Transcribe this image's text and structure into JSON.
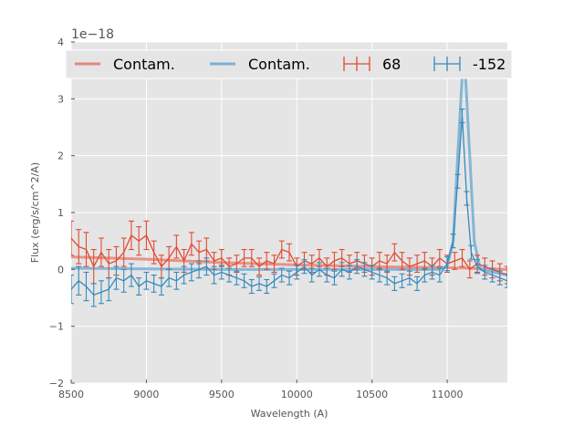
{
  "chart_data": {
    "type": "line",
    "title": "",
    "xlabel": "Wavelength (A)",
    "ylabel": "Flux (erg/s/cm^2/A)",
    "y_scale_label": "1e−18",
    "xlim": [
      8500,
      11400
    ],
    "ylim": [
      -2,
      4
    ],
    "x_ticks": [
      8500,
      9000,
      9500,
      10000,
      10500,
      11000
    ],
    "x_tick_labels": [
      "8500",
      "9000",
      "9500",
      "10000",
      "10500",
      "11000"
    ],
    "y_ticks": [
      -2,
      -1,
      0,
      1,
      2,
      3,
      4
    ],
    "y_tick_labels": [
      "−2",
      "−1",
      "0",
      "1",
      "2",
      "3",
      "4"
    ],
    "grid": true,
    "legend_position": "top",
    "colors": {
      "red": "#e24a33",
      "blue": "#348abd",
      "red_contam": "#e8887a",
      "blue_contam": "#7ab0d3",
      "plot_bg": "#e5e5e5",
      "grid": "#ffffff"
    },
    "series": [
      {
        "name": "Contam.",
        "kind": "contam-line",
        "color": "#e8887a",
        "x": [
          8500,
          9000,
          9500,
          10000,
          10500,
          11000,
          11400
        ],
        "y": [
          0.22,
          0.18,
          0.12,
          0.08,
          0.05,
          0.03,
          0.0
        ]
      },
      {
        "name": "Contam.",
        "kind": "contam-line",
        "color": "#7ab0d3",
        "x": [
          8500,
          9000,
          9500,
          10000,
          10500,
          10950,
          11000,
          11040,
          11070,
          11100,
          11120,
          11150,
          11180,
          11220,
          11400
        ],
        "y": [
          0.02,
          0.01,
          0.0,
          0.0,
          0.0,
          0.0,
          0.05,
          0.5,
          2.0,
          3.4,
          3.5,
          2.0,
          0.5,
          0.0,
          -0.1
        ]
      },
      {
        "name": "68",
        "kind": "errorbar",
        "color": "#e24a33",
        "x": [
          8500,
          8550,
          8600,
          8650,
          8700,
          8750,
          8800,
          8850,
          8900,
          8950,
          9000,
          9050,
          9100,
          9150,
          9200,
          9250,
          9300,
          9350,
          9400,
          9450,
          9500,
          9550,
          9600,
          9650,
          9700,
          9750,
          9800,
          9850,
          9900,
          9950,
          10000,
          10050,
          10100,
          10150,
          10200,
          10250,
          10300,
          10350,
          10400,
          10450,
          10500,
          10550,
          10600,
          10650,
          10700,
          10750,
          10800,
          10850,
          10900,
          10950,
          11000,
          11050,
          11100,
          11150,
          11200,
          11250,
          11300,
          11350,
          11400
        ],
        "y": [
          0.55,
          0.4,
          0.35,
          0.05,
          0.3,
          0.1,
          0.15,
          0.3,
          0.6,
          0.5,
          0.6,
          0.3,
          0.05,
          0.2,
          0.4,
          0.15,
          0.45,
          0.3,
          0.35,
          0.15,
          0.2,
          0.05,
          0.1,
          0.2,
          0.2,
          0.05,
          0.15,
          0.1,
          0.35,
          0.3,
          0.05,
          0.15,
          0.1,
          0.2,
          0.05,
          0.15,
          0.2,
          0.1,
          0.15,
          0.1,
          0.05,
          0.15,
          0.1,
          0.3,
          0.15,
          0.05,
          0.1,
          0.15,
          0.05,
          0.2,
          0.1,
          0.15,
          0.2,
          0.0,
          0.1,
          0.05,
          0.0,
          -0.05,
          -0.1
        ],
        "yerr": [
          0.3,
          0.3,
          0.3,
          0.3,
          0.25,
          0.25,
          0.25,
          0.25,
          0.25,
          0.25,
          0.25,
          0.2,
          0.2,
          0.2,
          0.2,
          0.2,
          0.2,
          0.2,
          0.2,
          0.15,
          0.15,
          0.15,
          0.15,
          0.15,
          0.15,
          0.15,
          0.15,
          0.15,
          0.15,
          0.15,
          0.15,
          0.15,
          0.15,
          0.15,
          0.15,
          0.15,
          0.15,
          0.15,
          0.15,
          0.15,
          0.15,
          0.15,
          0.15,
          0.15,
          0.15,
          0.15,
          0.15,
          0.15,
          0.15,
          0.15,
          0.15,
          0.15,
          0.15,
          0.15,
          0.15,
          0.15,
          0.15,
          0.15,
          0.15
        ]
      },
      {
        "name": "-152",
        "kind": "errorbar",
        "color": "#348abd",
        "x": [
          8500,
          8550,
          8600,
          8650,
          8700,
          8750,
          8800,
          8850,
          8900,
          8950,
          9000,
          9050,
          9100,
          9150,
          9200,
          9250,
          9300,
          9350,
          9400,
          9450,
          9500,
          9550,
          9600,
          9650,
          9700,
          9750,
          9800,
          9850,
          9900,
          9950,
          10000,
          10050,
          10100,
          10150,
          10200,
          10250,
          10300,
          10350,
          10400,
          10450,
          10500,
          10550,
          10600,
          10650,
          10700,
          10750,
          10800,
          10850,
          10900,
          10950,
          11000,
          11040,
          11070,
          11100,
          11130,
          11160,
          11200,
          11250,
          11300,
          11350,
          11400
        ],
        "y": [
          -0.35,
          -0.2,
          -0.3,
          -0.45,
          -0.4,
          -0.35,
          -0.15,
          -0.2,
          -0.1,
          -0.3,
          -0.2,
          -0.25,
          -0.3,
          -0.15,
          -0.2,
          -0.1,
          -0.05,
          0.0,
          0.05,
          -0.1,
          -0.05,
          -0.1,
          -0.15,
          -0.2,
          -0.3,
          -0.25,
          -0.3,
          -0.2,
          -0.1,
          -0.15,
          -0.05,
          0.05,
          -0.1,
          0.0,
          -0.1,
          -0.15,
          0.0,
          -0.05,
          0.05,
          0.0,
          -0.05,
          -0.1,
          -0.15,
          -0.25,
          -0.2,
          -0.15,
          -0.25,
          -0.1,
          -0.05,
          -0.1,
          0.1,
          0.5,
          1.55,
          2.7,
          1.25,
          0.3,
          0.05,
          -0.05,
          -0.1,
          -0.15,
          -0.2
        ],
        "yerr": [
          0.25,
          0.25,
          0.25,
          0.2,
          0.2,
          0.2,
          0.2,
          0.2,
          0.2,
          0.15,
          0.15,
          0.15,
          0.15,
          0.15,
          0.15,
          0.15,
          0.15,
          0.15,
          0.15,
          0.15,
          0.12,
          0.12,
          0.12,
          0.12,
          0.12,
          0.12,
          0.12,
          0.12,
          0.12,
          0.12,
          0.12,
          0.12,
          0.12,
          0.12,
          0.12,
          0.12,
          0.12,
          0.12,
          0.12,
          0.12,
          0.12,
          0.12,
          0.12,
          0.12,
          0.12,
          0.12,
          0.12,
          0.12,
          0.12,
          0.12,
          0.12,
          0.12,
          0.12,
          0.12,
          0.12,
          0.12,
          0.12,
          0.12,
          0.12,
          0.12,
          0.12
        ]
      }
    ]
  }
}
